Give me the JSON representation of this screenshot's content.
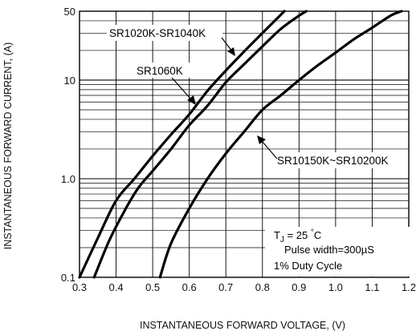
{
  "chart_data": {
    "type": "line",
    "xlabel": "INSTANTANEOUS FORWARD VOLTAGE, (V)",
    "ylabel": "INSTANTANEOUS FORWARD CURRENT, (A)",
    "xlim": [
      0.3,
      1.2
    ],
    "ylim": [
      0.1,
      50
    ],
    "yscale": "log",
    "grid": true,
    "x_ticks": [
      "0.3",
      "0.4",
      "0.5",
      "0.6",
      "0.7",
      "0.8",
      "0.9",
      "1.0",
      "1.1",
      "1.2"
    ],
    "y_ticks": [
      {
        "value": 0.1,
        "label": "0.1"
      },
      {
        "value": 1,
        "label": "1.0"
      },
      {
        "value": 10,
        "label": "10"
      },
      {
        "value": 50,
        "label": "50"
      }
    ],
    "series": [
      {
        "name": "SR1020K-SR1040K",
        "points": [
          [
            0.3,
            0.1
          ],
          [
            0.35,
            0.25
          ],
          [
            0.4,
            0.6
          ],
          [
            0.45,
            1.0
          ],
          [
            0.5,
            1.7
          ],
          [
            0.55,
            2.8
          ],
          [
            0.6,
            4.5
          ],
          [
            0.65,
            7.8
          ],
          [
            0.7,
            12.5
          ],
          [
            0.75,
            19.5
          ],
          [
            0.8,
            30
          ],
          [
            0.85,
            46
          ],
          [
            0.86,
            50
          ]
        ]
      },
      {
        "name": "SR1060K",
        "points": [
          [
            0.34,
            0.1
          ],
          [
            0.38,
            0.23
          ],
          [
            0.42,
            0.45
          ],
          [
            0.46,
            0.8
          ],
          [
            0.5,
            1.2
          ],
          [
            0.55,
            2.0
          ],
          [
            0.6,
            3.5
          ],
          [
            0.65,
            5.5
          ],
          [
            0.7,
            9.5
          ],
          [
            0.75,
            14.5
          ],
          [
            0.8,
            22
          ],
          [
            0.85,
            33
          ],
          [
            0.9,
            45
          ],
          [
            0.92,
            50
          ]
        ]
      },
      {
        "name": "SR10150K~SR10200K",
        "points": [
          [
            0.52,
            0.1
          ],
          [
            0.55,
            0.22
          ],
          [
            0.6,
            0.5
          ],
          [
            0.65,
            1.0
          ],
          [
            0.7,
            1.8
          ],
          [
            0.75,
            3.0
          ],
          [
            0.8,
            5.0
          ],
          [
            0.85,
            7.0
          ],
          [
            0.9,
            10
          ],
          [
            0.95,
            14
          ],
          [
            1.0,
            19
          ],
          [
            1.05,
            26
          ],
          [
            1.1,
            34
          ],
          [
            1.15,
            45
          ],
          [
            1.18,
            50
          ]
        ]
      }
    ],
    "annotations": {
      "conditions": [
        "T",
        "J",
        " = 25 ",
        "°",
        "C",
        "Pulse width=300",
        "µ",
        "S",
        "1% Duty Cycle"
      ]
    }
  }
}
